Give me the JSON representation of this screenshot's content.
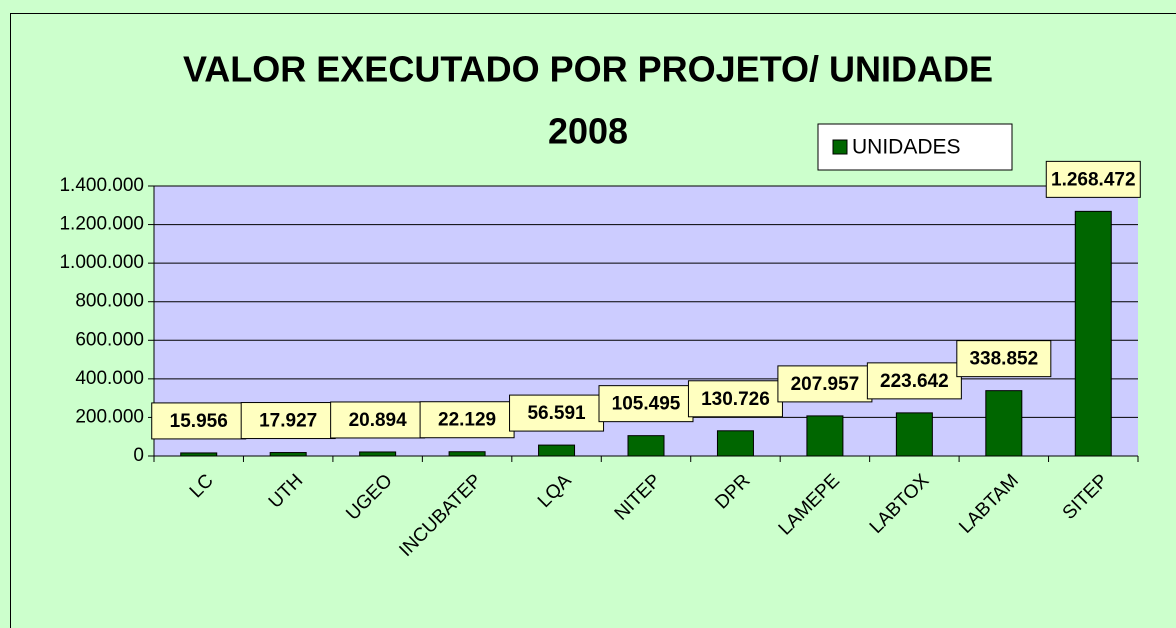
{
  "chart_data": {
    "type": "bar",
    "title": [
      "VALOR EXECUTADO POR PROJETO/ UNIDADE",
      "2008"
    ],
    "categories": [
      "LC",
      "UTH",
      "UGEO",
      "INCUBATEP",
      "LQA",
      "NITEP",
      "DPR",
      "LAMEPE",
      "LABTOX",
      "LABTAM",
      "SITEP"
    ],
    "series": [
      {
        "name": "UNIDADES",
        "color": "#006600",
        "values": [
          15956,
          17927,
          20894,
          22129,
          56591,
          105495,
          130726,
          207957,
          223642,
          338852,
          1268472
        ],
        "value_labels": [
          "15.956",
          "17.927",
          "20.894",
          "22.129",
          "56.591",
          "105.495",
          "130.726",
          "207.957",
          "223.642",
          "338.852",
          "1.268.472"
        ]
      }
    ],
    "ylim": [
      0,
      1400000
    ],
    "yticks": [
      0,
      {
        "value": 200000,
        "label": "200.000"
      },
      {
        "value": 400000,
        "label": "400.000"
      },
      {
        "value": 600000,
        "label": "600.000"
      },
      {
        "value": 800000,
        "label": "800.000"
      },
      {
        "value": 1000000,
        "label": "1.000.000"
      },
      {
        "value": 1200000,
        "label": "1.200.000"
      },
      {
        "value": 1400000,
        "label": "1.400.000"
      }
    ],
    "grid": true,
    "legend": "top-right"
  }
}
